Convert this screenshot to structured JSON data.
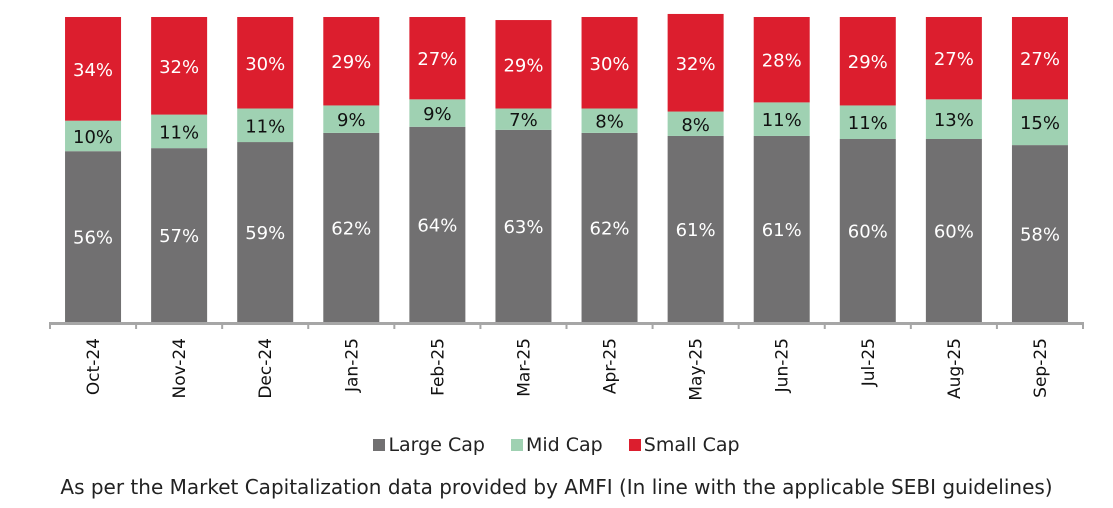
{
  "chart_data": {
    "type": "bar",
    "stacked": true,
    "title": "",
    "xlabel": "",
    "ylabel": "",
    "ylim": [
      0,
      100
    ],
    "grid": false,
    "legend_position": "bottom",
    "categories": [
      "Oct-24",
      "Nov-24",
      "Dec-24",
      "Jan-25",
      "Feb-25",
      "Mar-25",
      "Apr-25",
      "May-25",
      "Jun-25",
      "Jul-25",
      "Aug-25",
      "Sep-25"
    ],
    "series": [
      {
        "name": "Large Cap",
        "color": "#717071",
        "label_color": "#ffffff",
        "values": [
          56,
          57,
          59,
          62,
          64,
          63,
          62,
          61,
          61,
          60,
          60,
          58
        ]
      },
      {
        "name": "Mid Cap",
        "color": "#9fd1b2",
        "label_color": "#111111",
        "values": [
          10,
          11,
          11,
          9,
          9,
          7,
          8,
          8,
          11,
          11,
          13,
          15
        ]
      },
      {
        "name": "Small Cap",
        "color": "#dc1e2e",
        "label_color": "#ffffff",
        "values": [
          34,
          32,
          30,
          29,
          27,
          29,
          30,
          32,
          28,
          29,
          27,
          27
        ]
      }
    ],
    "value_suffix": "%",
    "axis_color": "#a6a6a6"
  },
  "caption": "As per the Market Capitalization data provided by AMFI (In line with the applicable SEBI guidelines)"
}
